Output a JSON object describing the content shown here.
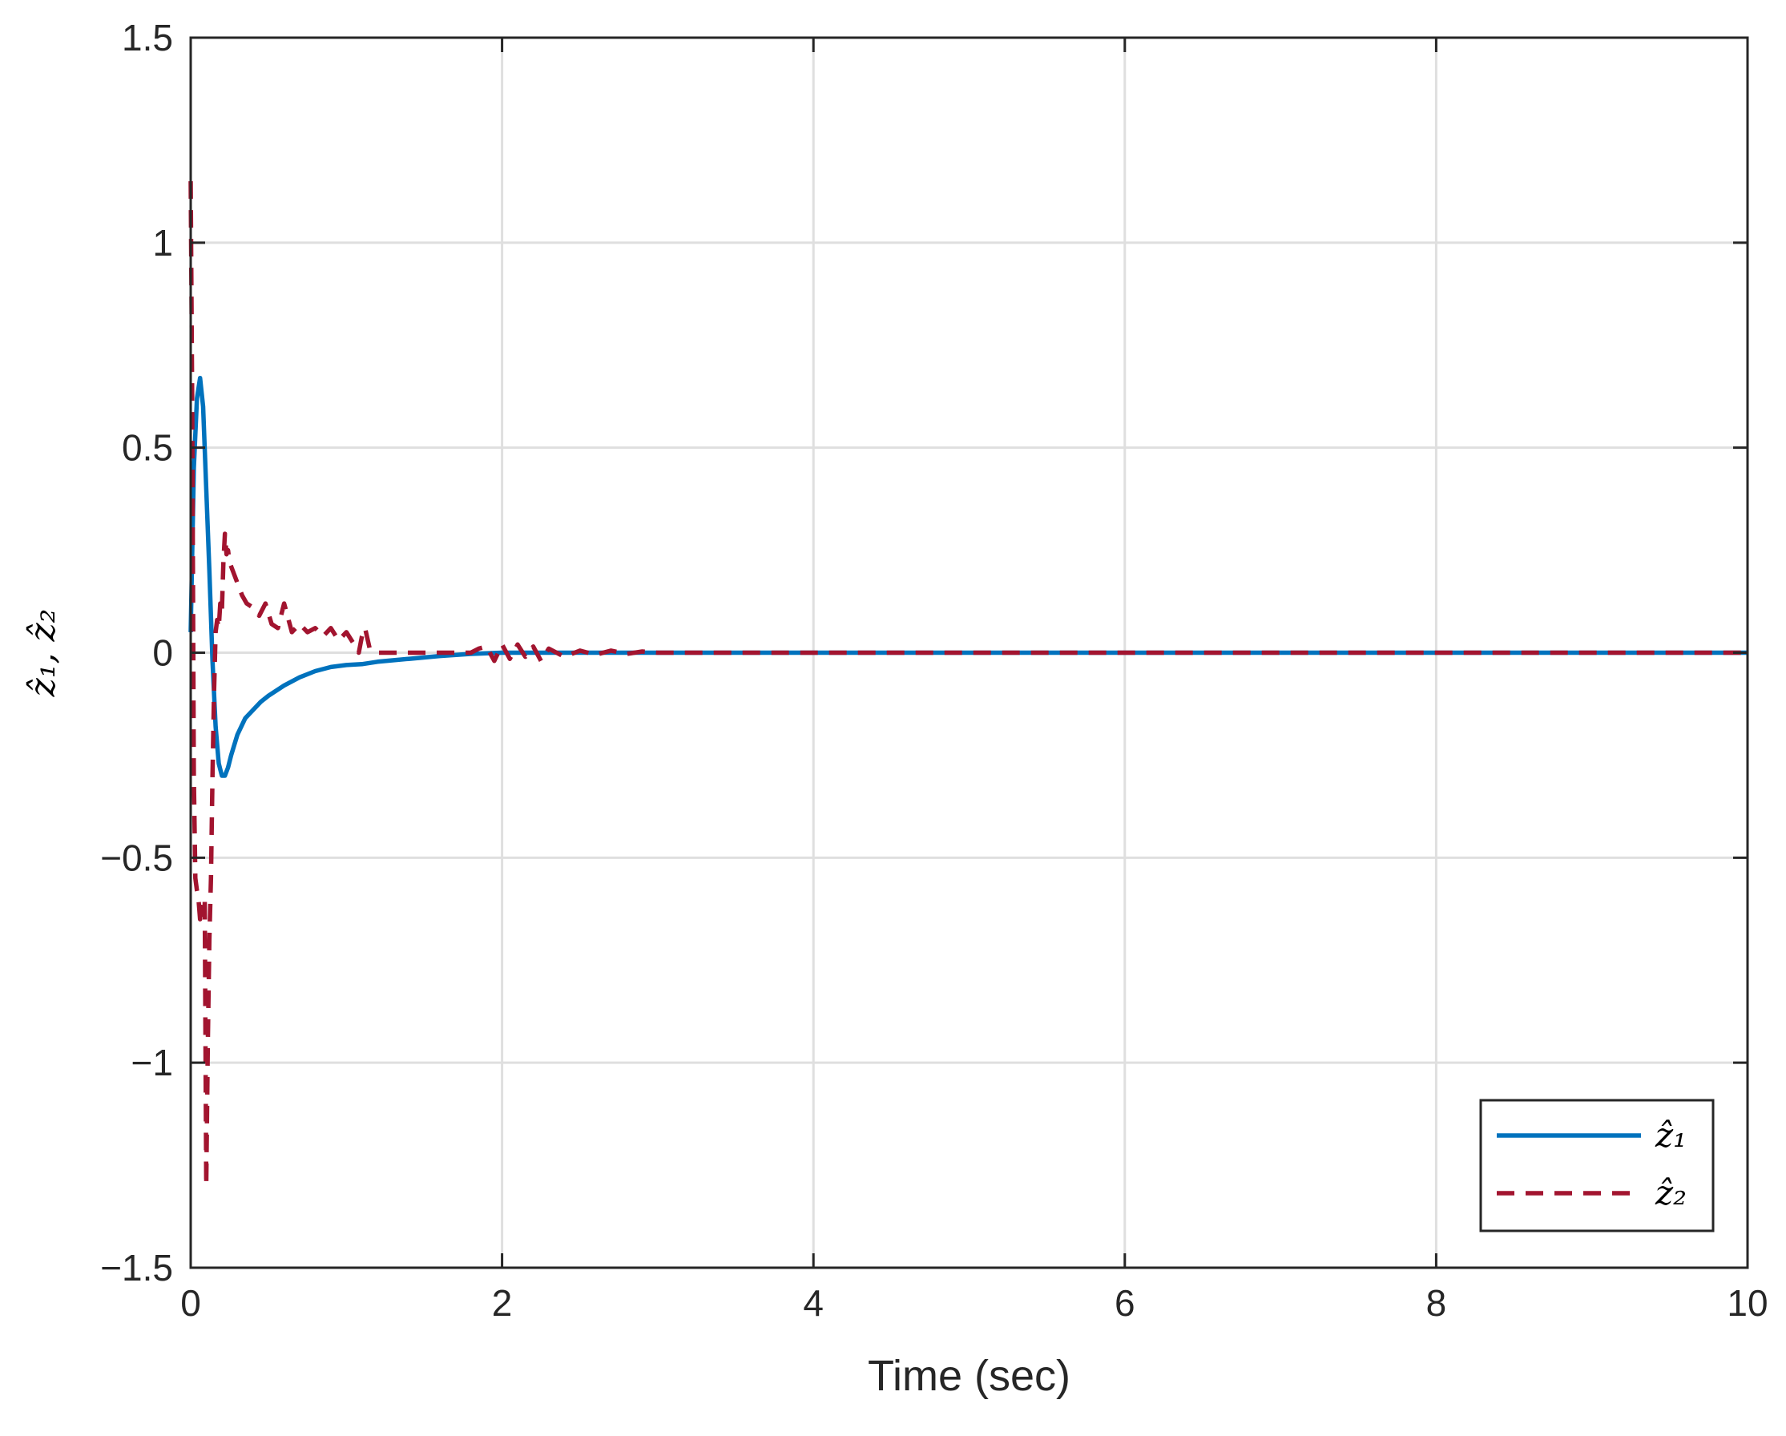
{
  "chart_data": {
    "type": "line",
    "title": "",
    "xlabel": "Time (sec)",
    "ylabel": "ẑ₁, ẑ₂",
    "xlim": [
      0,
      10
    ],
    "ylim": [
      -1.5,
      1.5
    ],
    "xticks": [
      0,
      2,
      4,
      6,
      8,
      10
    ],
    "xtick_labels": [
      "0",
      "2",
      "4",
      "6",
      "8",
      "10"
    ],
    "yticks": [
      -1.5,
      -1,
      -0.5,
      0,
      0.5,
      1,
      1.5
    ],
    "ytick_labels": [
      "−1.5",
      "−1",
      "−0.5",
      "0",
      "0.5",
      "1",
      "1.5"
    ],
    "grid": true,
    "legend_position": "bottom-right",
    "series": [
      {
        "name": "ẑ₁",
        "color": "#0072BD",
        "style": "solid",
        "x": [
          0,
          0.02,
          0.04,
          0.06,
          0.08,
          0.1,
          0.12,
          0.14,
          0.16,
          0.18,
          0.2,
          0.22,
          0.24,
          0.26,
          0.3,
          0.35,
          0.4,
          0.45,
          0.5,
          0.6,
          0.7,
          0.8,
          0.9,
          1.0,
          1.1,
          1.2,
          1.4,
          1.6,
          1.8,
          2.0,
          2.5,
          3.0,
          4.0,
          6.0,
          8.0,
          10.0
        ],
        "y": [
          0.05,
          0.45,
          0.62,
          0.67,
          0.6,
          0.4,
          0.2,
          -0.02,
          -0.18,
          -0.27,
          -0.3,
          -0.3,
          -0.28,
          -0.25,
          -0.2,
          -0.16,
          -0.14,
          -0.12,
          -0.105,
          -0.08,
          -0.06,
          -0.045,
          -0.035,
          -0.03,
          -0.028,
          -0.022,
          -0.015,
          -0.008,
          -0.003,
          0.0,
          0.0,
          0.0,
          0.0,
          0.0,
          0.0,
          0.0
        ]
      },
      {
        "name": "ẑ₂",
        "color": "#A2142F",
        "style": "dashed",
        "x": [
          0,
          0.01,
          0.02,
          0.03,
          0.04,
          0.05,
          0.06,
          0.07,
          0.08,
          0.09,
          0.1,
          0.11,
          0.12,
          0.13,
          0.14,
          0.15,
          0.16,
          0.17,
          0.18,
          0.19,
          0.2,
          0.21,
          0.22,
          0.23,
          0.24,
          0.25,
          0.27,
          0.3,
          0.33,
          0.36,
          0.4,
          0.44,
          0.48,
          0.52,
          0.56,
          0.6,
          0.65,
          0.7,
          0.75,
          0.8,
          0.85,
          0.9,
          0.95,
          1.0,
          1.05,
          1.08,
          1.1,
          1.12,
          1.15,
          1.2,
          1.3,
          1.4,
          1.5,
          1.6,
          1.7,
          1.8,
          1.85,
          1.9,
          1.95,
          2.0,
          2.05,
          2.1,
          2.15,
          2.2,
          2.25,
          2.3,
          2.4,
          2.5,
          2.6,
          2.7,
          2.8,
          2.9,
          3.0,
          3.5,
          4.0,
          6.0,
          8.0,
          10.0
        ],
        "y": [
          1.15,
          0.6,
          -0.3,
          -0.55,
          -0.58,
          -0.6,
          -0.65,
          -0.62,
          -0.64,
          -0.6,
          -1.3,
          -0.95,
          -0.7,
          -0.55,
          -0.3,
          -0.1,
          0.05,
          0.08,
          0.06,
          0.12,
          0.1,
          0.22,
          0.29,
          0.24,
          0.25,
          0.22,
          0.2,
          0.17,
          0.14,
          0.12,
          0.11,
          0.09,
          0.12,
          0.07,
          0.06,
          0.12,
          0.05,
          0.07,
          0.05,
          0.06,
          0.04,
          0.06,
          0.03,
          0.05,
          0.02,
          0.0,
          0.04,
          0.06,
          0.01,
          0.0,
          0.0,
          0.0,
          0.0,
          0.0,
          0.0,
          0.0,
          0.01,
          0.015,
          -0.02,
          0.02,
          -0.015,
          0.02,
          -0.01,
          0.015,
          -0.02,
          0.01,
          -0.01,
          0.005,
          -0.005,
          0.005,
          -0.003,
          0.003,
          0.0,
          0.0,
          0.0,
          0.0,
          0.0,
          0.0
        ]
      }
    ]
  }
}
